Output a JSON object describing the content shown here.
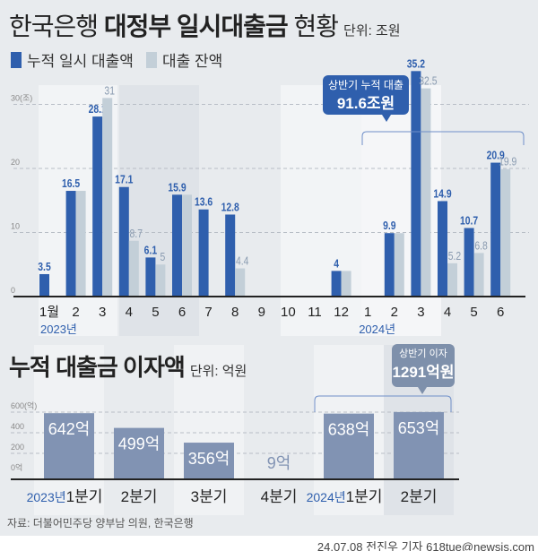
{
  "title_regular": "한국은행",
  "title_bold": "대정부 일시대출금",
  "title_suffix": "현황",
  "unit": "단위: 조원",
  "legend": [
    {
      "label": "누적 일시 대출액",
      "color": "#2f5fad"
    },
    {
      "label": "대출 잔액",
      "color": "#c3cfd8"
    }
  ],
  "colors": {
    "primary": "#2f5fad",
    "secondary": "#c3cfd8",
    "interest_bar": "#8193b3",
    "callout": "#2f5fad",
    "callout2": "#7e90ab"
  },
  "callout1": {
    "line1": "상반기 누적 대출",
    "line2": "91.6조원"
  },
  "callout2": {
    "line1": "상반기 이자",
    "line2": "1291억원"
  },
  "subtitle": "누적 대출금 이자액",
  "sub_unit": "단위: 억원",
  "source": "자료: 더불어민주당 양부남 의원, 한국은행",
  "credit": "24.07.08 전진우 기자 618tue@newsis.com",
  "chart_data": [
    {
      "type": "bar",
      "ylim": [
        0,
        35
      ],
      "yticks": [
        "0",
        "10",
        "20",
        "30(조)"
      ],
      "ytick_values": [
        0,
        10,
        20,
        30
      ],
      "grid": true,
      "categories": [
        "1월",
        "2",
        "3",
        "4",
        "5",
        "6",
        "7",
        "8",
        "9",
        "10",
        "11",
        "12",
        "1",
        "2",
        "3",
        "4",
        "5",
        "6"
      ],
      "year_labels": [
        {
          "index": 0,
          "label": "2023년"
        },
        {
          "index": 12,
          "label": "2024년"
        }
      ],
      "series": [
        {
          "name": "누적 일시 대출액",
          "values": [
            3.5,
            16.5,
            28.1,
            17.1,
            6.1,
            15.9,
            13.6,
            12.8,
            null,
            null,
            null,
            4,
            null,
            9.9,
            35.2,
            14.9,
            10.7,
            20.9
          ],
          "labels": [
            "3.5",
            "16.5",
            "28.1",
            "17.1",
            "6.1",
            "15.9",
            "13.6",
            "12.8",
            "",
            "",
            "",
            "4",
            "",
            "9.9",
            "35.2",
            "14.9",
            "10.7",
            "20.9"
          ]
        },
        {
          "name": "대출 잔액",
          "values": [
            null,
            16.5,
            31,
            8.7,
            5,
            15.9,
            null,
            4.4,
            null,
            null,
            null,
            4,
            null,
            9.9,
            32.5,
            5.2,
            6.8,
            19.9
          ],
          "labels": [
            "",
            "",
            "31",
            "8.7",
            "5",
            "",
            "",
            "4.4",
            "",
            "",
            "",
            "",
            "",
            "",
            "32.5",
            "5.2",
            "6.8",
            "19.9"
          ]
        }
      ]
    },
    {
      "type": "bar",
      "ylim": [
        0,
        700
      ],
      "yticks": [
        "0억",
        "200",
        "400",
        "600(억)"
      ],
      "ytick_values": [
        0,
        200,
        400,
        600
      ],
      "grid": true,
      "categories": [
        "1분기",
        "2분기",
        "3분기",
        "4분기",
        "1분기",
        "2분기"
      ],
      "year_labels": [
        {
          "index": 0,
          "label": "2023년"
        },
        {
          "index": 4,
          "label": "2024년"
        }
      ],
      "values": [
        642,
        499,
        356,
        9,
        638,
        653
      ],
      "labels": [
        "642억",
        "499억",
        "356억",
        "9억",
        "638억",
        "653억"
      ]
    }
  ]
}
